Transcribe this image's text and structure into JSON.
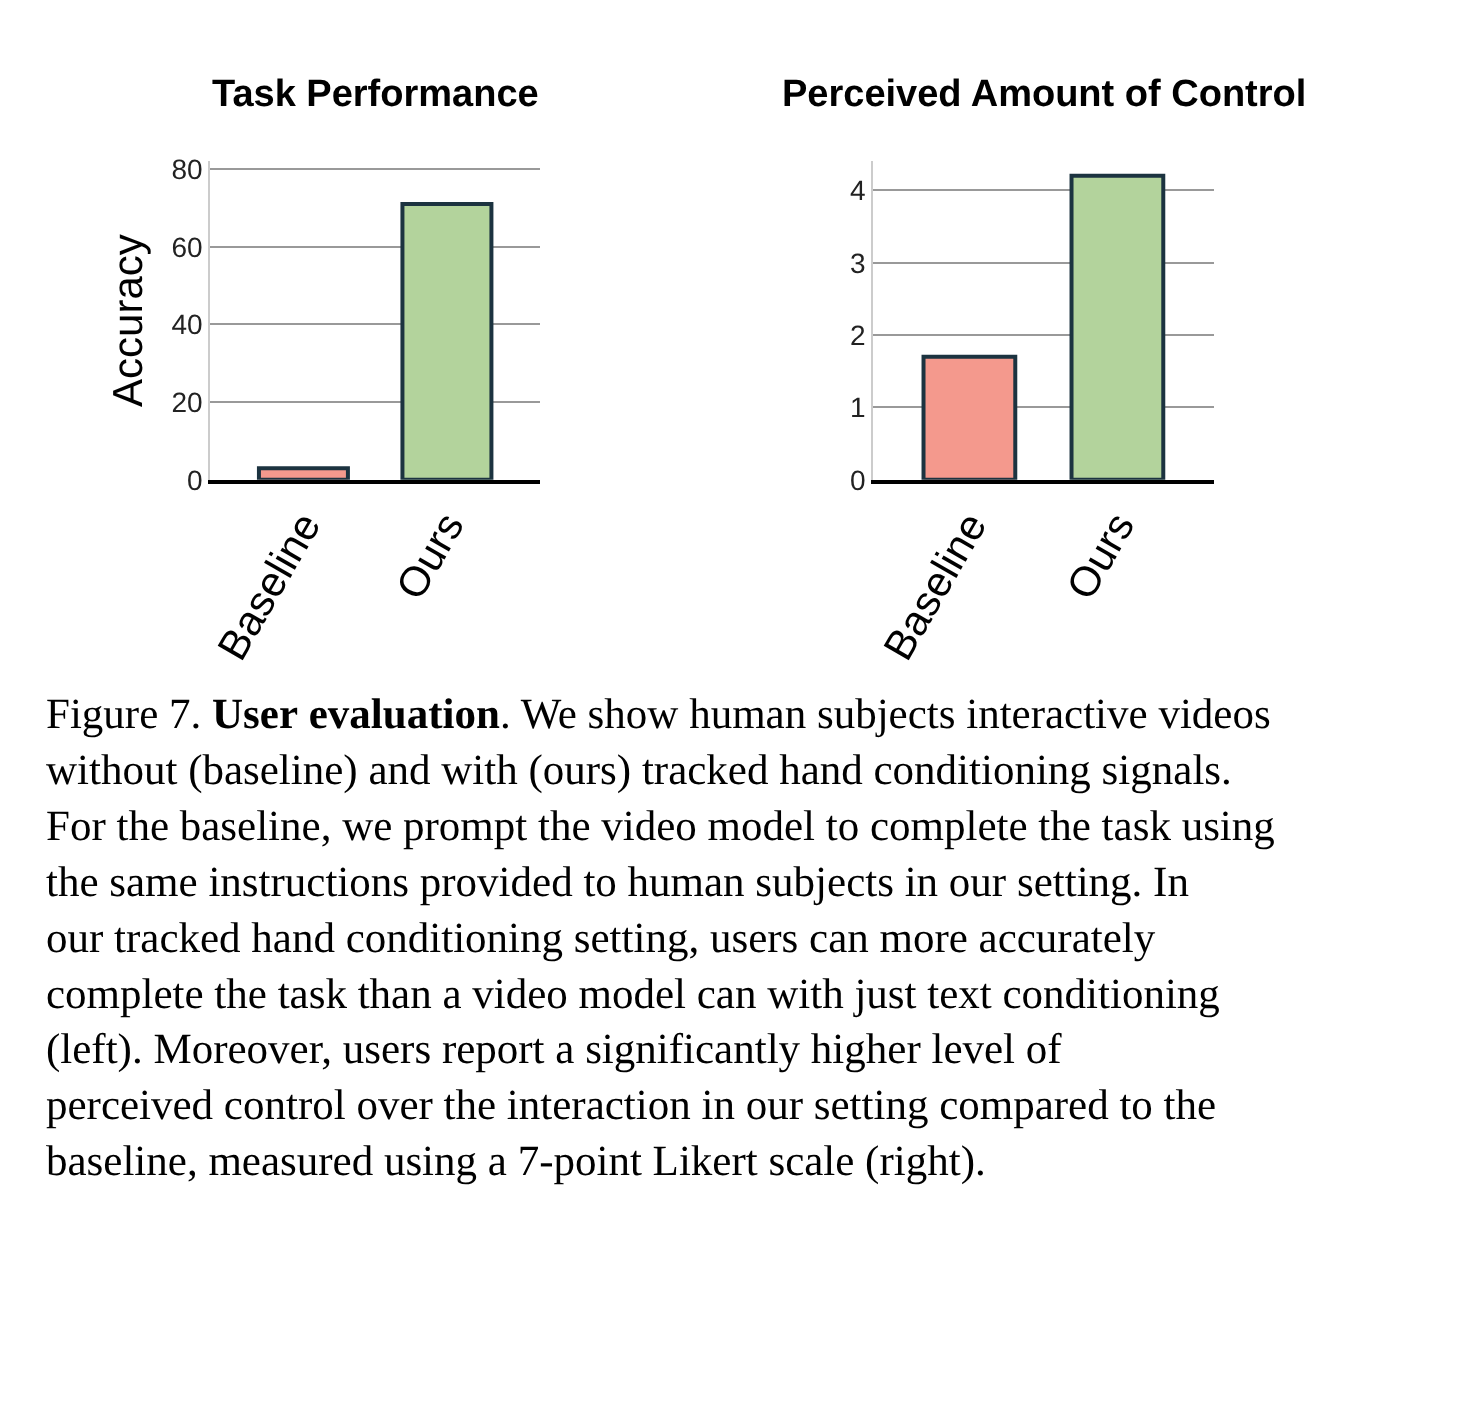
{
  "chart_data": [
    {
      "type": "bar",
      "title": "Task Performance",
      "ylabel": "Accuracy",
      "categories": [
        "Baseline",
        "Ours"
      ],
      "values": [
        3,
        71
      ],
      "colors": [
        "#f4998d",
        "#b3d39c"
      ],
      "ylim": [
        0,
        82
      ],
      "yticks": [
        0,
        20,
        40,
        60,
        80
      ],
      "grid": "y",
      "annotations": [
        "Figure 7. ",
        "User evaluation",
        ". We show human subjects interactive videos without (baseline) and with (ours) tracked hand conditioning signals. For the baseline, we prompt the video model to complete the task using the same instructions provided to human subjects in our setting. In our tracked hand conditioning setting, users can more accurately complete the task than a video model can with just text conditioning (left). Moreover, users report a significantly higher level of perceived control over the interaction in our setting compared to the baseline, measured using a 7-point Likert scale (right)."
      ]
    },
    {
      "type": "bar",
      "title": "Perceived Amount of Control",
      "categories": [
        "Baseline",
        "Ours"
      ],
      "values": [
        1.7,
        4.2
      ],
      "colors": [
        "#f4998d",
        "#b3d39c"
      ],
      "ylim": [
        0,
        4.4
      ],
      "yticks": [
        0,
        1,
        2,
        3,
        4
      ],
      "grid": "y"
    }
  ]
}
